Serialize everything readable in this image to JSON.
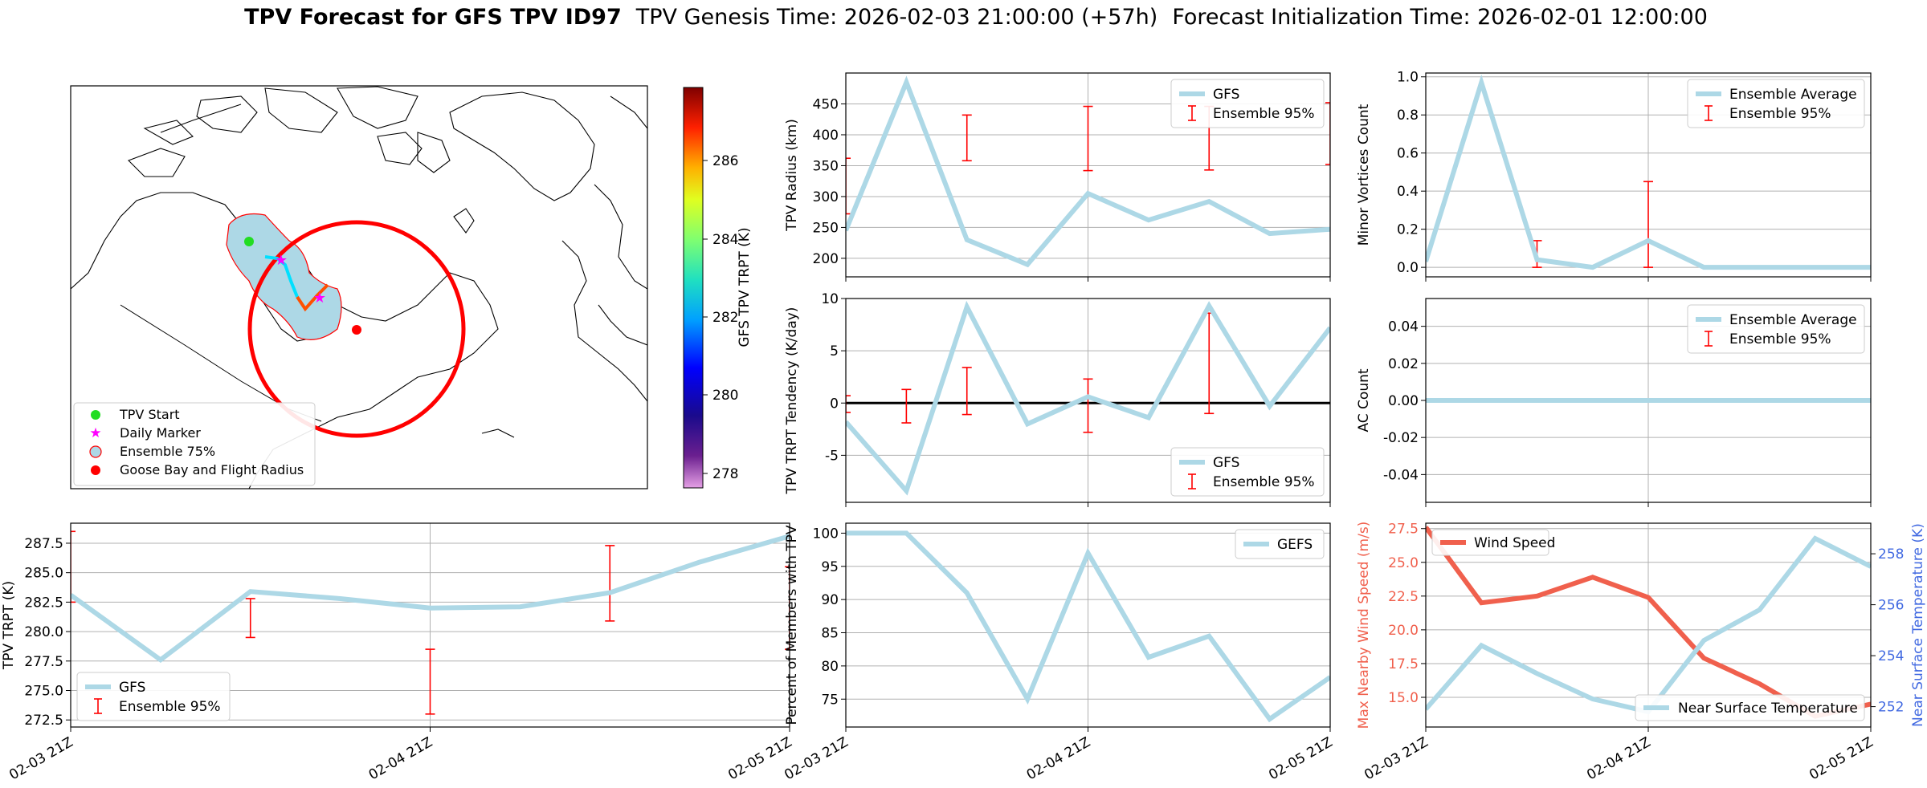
{
  "title": {
    "bold": "TPV Forecast for GFS TPV ID97",
    "genesis": "TPV Genesis Time: 2026-02-03 21:00:00 (+57h)",
    "init": "Forecast Initialization Time: 2026-02-01 12:00:00"
  },
  "colors": {
    "gfs_line": "#add8e6",
    "ensemble": "#ff0000",
    "wind": "#f0604d",
    "temp_axis": "#4169e1",
    "grid": "#b0b0b0"
  },
  "map": {
    "colorbar_label": "GFS TPV TRPT (K)",
    "colorbar_ticks": [
      "278",
      "280",
      "282",
      "284",
      "286"
    ],
    "legend": [
      {
        "label": "TPV Start",
        "icon": "green-dot-icon"
      },
      {
        "label": "Daily Marker",
        "icon": "magenta-star-icon"
      },
      {
        "label": "Ensemble 75%",
        "icon": "blue-patch-icon"
      },
      {
        "label": "Goose Bay and Flight Radius",
        "icon": "red-dot-icon"
      }
    ]
  },
  "chart_data": [
    {
      "id": "radius",
      "type": "line",
      "ylabel": "TPV Radius (km)",
      "ylim": [
        170,
        500
      ],
      "yticks": [
        200,
        250,
        300,
        350,
        400,
        450
      ],
      "x": [
        0,
        0.25,
        0.5,
        0.75,
        1,
        1.25,
        1.5,
        1.75,
        2
      ],
      "series": [
        {
          "name": "GFS",
          "values": [
            245,
            485,
            230,
            190,
            305,
            262,
            292,
            240,
            247
          ]
        }
      ],
      "errorbars": [
        {
          "x": 0,
          "low": 272,
          "high": 362
        },
        {
          "x": 0.5,
          "low": 358,
          "high": 432
        },
        {
          "x": 1,
          "low": 342,
          "high": 446
        },
        {
          "x": 1.5,
          "low": 343,
          "high": 446
        },
        {
          "x": 2,
          "low": 352,
          "high": 452
        }
      ],
      "legend": [
        "GFS",
        "Ensemble 95%"
      ]
    },
    {
      "id": "minor",
      "type": "line",
      "ylabel": "Minor Vortices Count",
      "ylim": [
        -0.05,
        1.02
      ],
      "yticks": [
        0.0,
        0.2,
        0.4,
        0.6,
        0.8,
        1.0
      ],
      "tick_decimals": 1,
      "x": [
        0,
        0.25,
        0.5,
        0.75,
        1,
        1.25,
        1.5,
        1.75,
        2
      ],
      "series": [
        {
          "name": "Ensemble Average",
          "values": [
            0.03,
            0.97,
            0.04,
            0.0,
            0.14,
            0.0,
            0.0,
            0.0,
            0.0
          ]
        }
      ],
      "errorbars": [
        {
          "x": 0.5,
          "low": 0.0,
          "high": 0.14
        },
        {
          "x": 1,
          "low": 0.0,
          "high": 0.45
        }
      ],
      "legend": [
        "Ensemble Average",
        "Ensemble 95%"
      ]
    },
    {
      "id": "tendency",
      "type": "line",
      "ylabel": "TPV TRPT Tendency (K/day)",
      "ylim": [
        -9.5,
        10
      ],
      "yticks": [
        -5,
        0,
        5,
        10
      ],
      "zero_line": true,
      "x": [
        0,
        0.25,
        0.5,
        0.75,
        1,
        1.25,
        1.5,
        1.75,
        2
      ],
      "series": [
        {
          "name": "GFS",
          "values": [
            -1.8,
            -8.4,
            9.2,
            -2.0,
            0.6,
            -1.4,
            9.3,
            -0.3,
            7.2
          ]
        }
      ],
      "errorbars": [
        {
          "x": 0,
          "low": -0.9,
          "high": 0.7
        },
        {
          "x": 0.25,
          "low": -1.9,
          "high": 1.3
        },
        {
          "x": 0.5,
          "low": -1.1,
          "high": 3.4
        },
        {
          "x": 1,
          "low": -2.8,
          "high": 2.3
        },
        {
          "x": 1.5,
          "low": -1.0,
          "high": 8.6
        }
      ],
      "legend": [
        "GFS",
        "Ensemble 95%"
      ]
    },
    {
      "id": "ac",
      "type": "line",
      "ylabel": "AC Count",
      "ylim": [
        -0.055,
        0.055
      ],
      "yticks": [
        -0.04,
        -0.02,
        0.0,
        0.02,
        0.04
      ],
      "tick_decimals": 2,
      "x": [
        0,
        0.25,
        0.5,
        0.75,
        1,
        1.25,
        1.5,
        1.75,
        2
      ],
      "series": [
        {
          "name": "Ensemble Average",
          "values": [
            0,
            0,
            0,
            0,
            0,
            0,
            0,
            0,
            0
          ]
        }
      ],
      "errorbars": [
        {
          "x": 0.5,
          "low": 0,
          "high": 0
        },
        {
          "x": 1,
          "low": 0,
          "high": 0
        },
        {
          "x": 1.5,
          "low": 0,
          "high": 0
        }
      ],
      "legend": [
        "Ensemble Average",
        "Ensemble 95%"
      ]
    },
    {
      "id": "trpt",
      "type": "line",
      "ylabel": "TPV TRPT (K)",
      "ylim": [
        271.9,
        289.2
      ],
      "yticks": [
        272.5,
        275.0,
        277.5,
        280.0,
        282.5,
        285.0,
        287.5
      ],
      "tick_decimals": 1,
      "x": [
        0,
        0.25,
        0.5,
        0.75,
        1,
        1.25,
        1.5,
        1.75,
        2
      ],
      "series": [
        {
          "name": "GFS",
          "values": [
            283.1,
            277.6,
            283.4,
            282.8,
            282.0,
            282.1,
            283.3,
            285.9,
            288.1
          ]
        }
      ],
      "errorbars": [
        {
          "x": 0,
          "low": 282.5,
          "high": 288.5
        },
        {
          "x": 0.5,
          "low": 279.5,
          "high": 282.8
        },
        {
          "x": 1,
          "low": 273.0,
          "high": 278.5
        },
        {
          "x": 1.5,
          "low": 280.9,
          "high": 287.3
        },
        {
          "x": 2,
          "low": 278.5,
          "high": 285.5
        }
      ],
      "legend": [
        "GFS",
        "Ensemble 95%"
      ],
      "xticks": [
        "02-03 21Z",
        "02-04 21Z",
        "02-05 21Z"
      ]
    },
    {
      "id": "members",
      "type": "line",
      "ylabel": "Percent of Members with TPV",
      "ylim": [
        70.8,
        101.5
      ],
      "yticks": [
        75,
        80,
        85,
        90,
        95,
        100
      ],
      "x": [
        0,
        0.25,
        0.5,
        0.75,
        1,
        1.25,
        1.5,
        1.75,
        2
      ],
      "series": [
        {
          "name": "GEFS",
          "values": [
            100,
            100,
            91,
            75,
            97,
            81.3,
            84.5,
            72,
            78.3
          ]
        }
      ],
      "legend": [
        "GEFS"
      ],
      "xticks": [
        "02-03 21Z",
        "02-04 21Z",
        "02-05 21Z"
      ]
    },
    {
      "id": "wind",
      "type": "line",
      "ylabel": "Max Nearby Wind Speed (m/s)",
      "ylabel_right": "Near Surface Temperature (K)",
      "ylim": [
        12.8,
        27.9
      ],
      "yticks": [
        15.0,
        17.5,
        20.0,
        22.5,
        25.0,
        27.5
      ],
      "tick_decimals": 1,
      "ylim_right": [
        251.2,
        259.2
      ],
      "yticks_right": [
        252,
        254,
        256,
        258
      ],
      "x": [
        0,
        0.25,
        0.5,
        0.75,
        1,
        1.25,
        1.5,
        1.75,
        2
      ],
      "series": [
        {
          "name": "Wind Speed",
          "axis": "left",
          "values": [
            27.6,
            22.0,
            22.5,
            23.9,
            22.4,
            17.9,
            16.0,
            13.6,
            14.5
          ]
        },
        {
          "name": "Near Surface Temperature",
          "axis": "right",
          "values": [
            251.9,
            254.4,
            253.3,
            252.3,
            251.8,
            254.6,
            255.8,
            258.6,
            257.5
          ]
        }
      ],
      "legend": [
        "Wind Speed",
        "Near Surface Temperature"
      ],
      "xticks": [
        "02-03 21Z",
        "02-04 21Z",
        "02-05 21Z"
      ]
    }
  ]
}
